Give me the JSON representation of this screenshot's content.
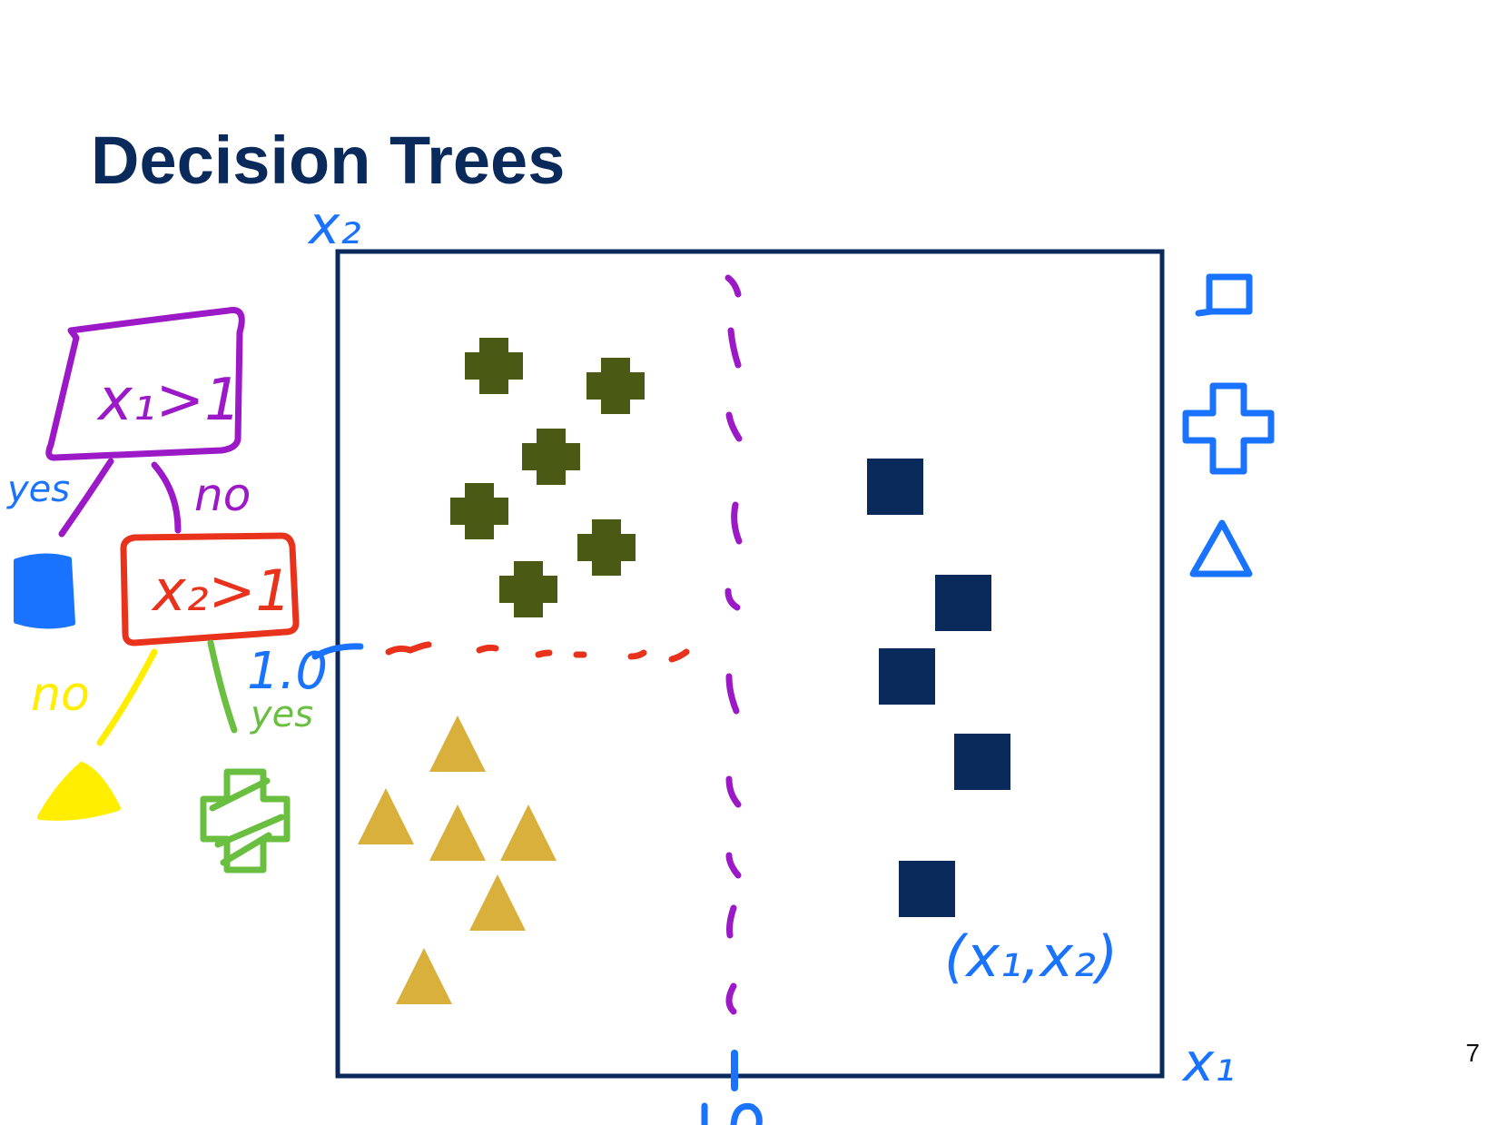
{
  "slide": {
    "title": "Decision Trees",
    "page_number": "7"
  },
  "plot": {
    "frame_color": "#0a2a5c",
    "classes": [
      {
        "name": "cross",
        "color": "#4a5a14",
        "count": 6
      },
      {
        "name": "square",
        "color": "#0a2a5c",
        "count": 5
      },
      {
        "name": "triangle",
        "color": "#d9b03c",
        "count": 6
      }
    ]
  },
  "annotations": {
    "x2_axis_label": "x₂",
    "x1_axis_label": "x₁",
    "x2_threshold_label": "1.0",
    "point_label": "(x₁,x₂)",
    "vertical_split_color": "#9b19c6",
    "horizontal_split_color": "#e8321c",
    "legend_color": "#1a73ff"
  },
  "tree": {
    "root_test": "x₁>1",
    "root_color": "#9b19c6",
    "root_yes": "yes",
    "root_no": "no",
    "child_test": "x₂>1",
    "child_color": "#e8321c",
    "child_no": "no",
    "child_yes": "yes",
    "leaf_square_color": "#1a73ff",
    "leaf_triangle_color": "#ffee00",
    "leaf_cross_color": "#6abf40"
  }
}
